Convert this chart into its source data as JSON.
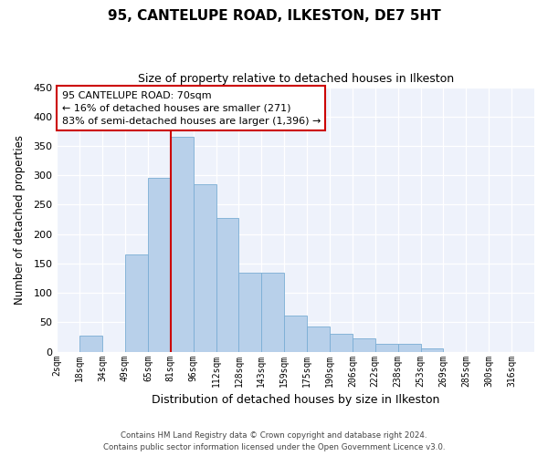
{
  "title": "95, CANTELUPE ROAD, ILKESTON, DE7 5HT",
  "subtitle": "Size of property relative to detached houses in Ilkeston",
  "xlabel": "Distribution of detached houses by size in Ilkeston",
  "ylabel": "Number of detached properties",
  "bar_labels": [
    "2sqm",
    "18sqm",
    "34sqm",
    "49sqm",
    "65sqm",
    "81sqm",
    "96sqm",
    "112sqm",
    "128sqm",
    "143sqm",
    "159sqm",
    "175sqm",
    "190sqm",
    "206sqm",
    "222sqm",
    "238sqm",
    "253sqm",
    "269sqm",
    "285sqm",
    "300sqm",
    "316sqm"
  ],
  "bar_values": [
    0,
    28,
    0,
    165,
    295,
    365,
    285,
    228,
    135,
    135,
    62,
    43,
    30,
    23,
    14,
    14,
    6,
    0,
    0,
    0,
    0
  ],
  "bar_color": "#b8d0ea",
  "bar_edge_color": "#7aadd4",
  "reference_line_label": "95 CANTELUPE ROAD: 70sqm",
  "annotation_line1": "← 16% of detached houses are smaller (271)",
  "annotation_line2": "83% of semi-detached houses are larger (1,396) →",
  "box_color": "#ffffff",
  "box_edge_color": "#cc0000",
  "ref_line_color": "#cc0000",
  "ylim": [
    0,
    450
  ],
  "yticks": [
    0,
    50,
    100,
    150,
    200,
    250,
    300,
    350,
    400,
    450
  ],
  "footer_line1": "Contains HM Land Registry data © Crown copyright and database right 2024.",
  "footer_line2": "Contains public sector information licensed under the Open Government Licence v3.0.",
  "bg_color": "#eef2fb"
}
